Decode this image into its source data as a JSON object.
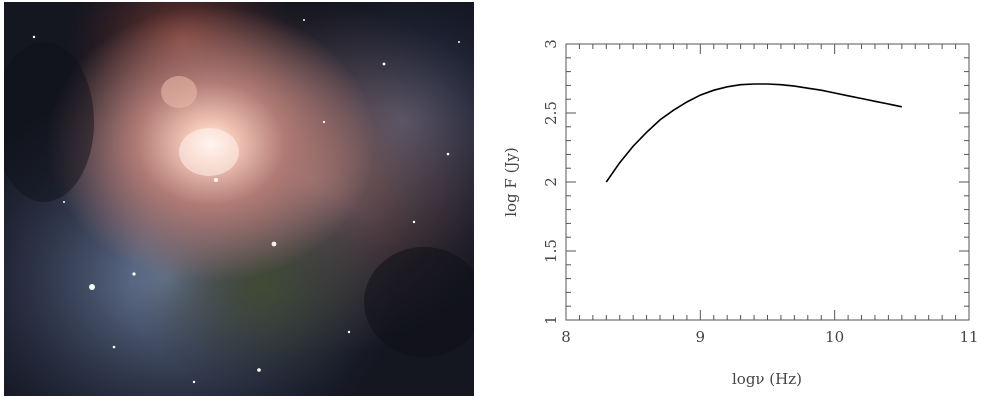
{
  "panels": {
    "left": {
      "kind": "photograph",
      "subject": "nebula"
    },
    "right": {
      "kind": "plot"
    }
  },
  "chart_data": {
    "type": "line",
    "title": "",
    "xlabel": "logν (Hz)",
    "ylabel": "log F (Jy)",
    "xlim": [
      8,
      11
    ],
    "ylim": [
      1,
      3
    ],
    "xticks": [
      8,
      9,
      10,
      11
    ],
    "yticks": [
      1,
      1.5,
      2,
      2.5,
      3
    ],
    "xtick_labels": [
      "8",
      "9",
      "10",
      "11"
    ],
    "ytick_labels": [
      "1",
      "1.5",
      "2",
      "2.5",
      "3"
    ],
    "grid": false,
    "legend": "none",
    "line_color": "#000000",
    "series": [
      {
        "x": [
          8.3,
          8.4,
          8.5,
          8.6,
          8.7,
          8.8,
          8.9,
          9.0,
          9.1,
          9.2,
          9.3,
          9.4,
          9.5,
          9.6,
          9.7,
          9.8,
          9.9,
          10.0,
          10.1,
          10.2,
          10.3,
          10.4,
          10.5
        ],
        "y": [
          2.0,
          2.14,
          2.26,
          2.36,
          2.45,
          2.52,
          2.58,
          2.63,
          2.665,
          2.69,
          2.705,
          2.71,
          2.71,
          2.705,
          2.695,
          2.68,
          2.665,
          2.645,
          2.625,
          2.605,
          2.585,
          2.565,
          2.545
        ]
      }
    ]
  }
}
